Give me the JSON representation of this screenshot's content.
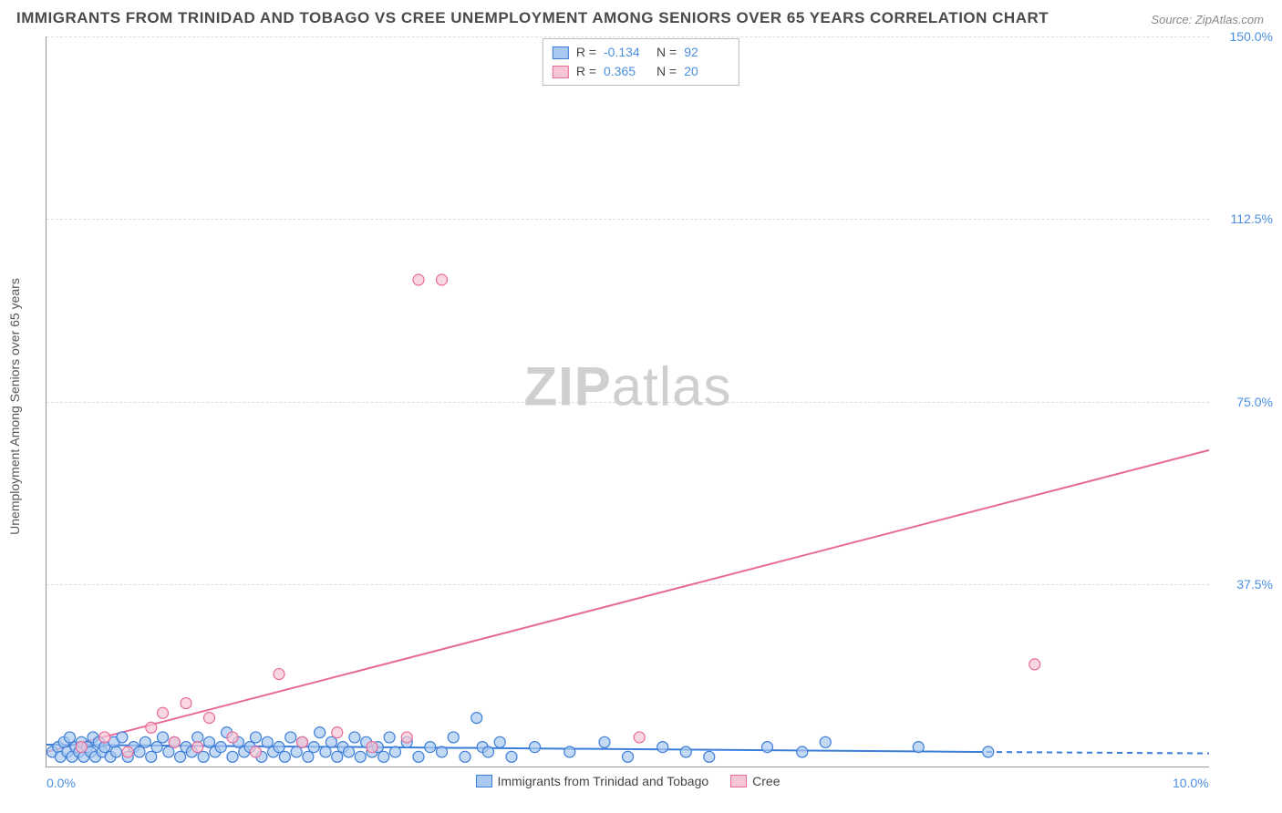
{
  "title": "IMMIGRANTS FROM TRINIDAD AND TOBAGO VS CREE UNEMPLOYMENT AMONG SENIORS OVER 65 YEARS CORRELATION CHART",
  "source_label": "Source:",
  "source_value": "ZipAtlas.com",
  "ylabel": "Unemployment Among Seniors over 65 years",
  "watermark_bold": "ZIP",
  "watermark_light": "atlas",
  "colors": {
    "series_blue_fill": "#a9c9f0",
    "series_blue_stroke": "#3b7dd8",
    "series_pink_fill": "#f7c6d4",
    "series_pink_stroke": "#e86a9a",
    "axis_text": "#4a8fe0",
    "grid": "#dddddd",
    "axis_line": "#999999",
    "text": "#4a4a4a",
    "bg": "#ffffff"
  },
  "chart": {
    "type": "scatter",
    "xlim": [
      0,
      10
    ],
    "ylim": [
      0,
      150
    ],
    "xticks": [
      {
        "value": 0.0,
        "label": "0.0%"
      },
      {
        "value": 10.0,
        "label": "10.0%"
      }
    ],
    "yticks": [
      {
        "value": 37.5,
        "label": "37.5%"
      },
      {
        "value": 75.0,
        "label": "75.0%"
      },
      {
        "value": 112.5,
        "label": "112.5%"
      },
      {
        "value": 150.0,
        "label": "150.0%"
      }
    ],
    "marker_radius": 6,
    "marker_opacity": 0.7,
    "marker_stroke_width": 1.2,
    "trend_line_width": 2
  },
  "legend_top": [
    {
      "swatch_fill": "#a9c9f0",
      "swatch_stroke": "#3b7dd8",
      "r_label": "R =",
      "r_value": "-0.134",
      "n_label": "N =",
      "n_value": "92"
    },
    {
      "swatch_fill": "#f7c6d4",
      "swatch_stroke": "#e86a9a",
      "r_label": "R =",
      "r_value": "0.365",
      "n_label": "N =",
      "n_value": "20"
    }
  ],
  "legend_bottom": [
    {
      "swatch_fill": "#a9c9f0",
      "swatch_stroke": "#3b7dd8",
      "label": "Immigrants from Trinidad and Tobago"
    },
    {
      "swatch_fill": "#f7c6d4",
      "swatch_stroke": "#e86a9a",
      "label": "Cree"
    }
  ],
  "series": {
    "blue": {
      "trend": {
        "x1": 0,
        "y1": 4.5,
        "x2": 8.0,
        "y2": 3.0,
        "dash_after_x": 8.0,
        "dash_to_x": 10.0,
        "dash_to_y": 2.7
      },
      "points": [
        [
          0.05,
          3
        ],
        [
          0.1,
          4
        ],
        [
          0.12,
          2
        ],
        [
          0.15,
          5
        ],
        [
          0.18,
          3
        ],
        [
          0.2,
          6
        ],
        [
          0.22,
          2
        ],
        [
          0.25,
          4
        ],
        [
          0.28,
          3
        ],
        [
          0.3,
          5
        ],
        [
          0.32,
          2
        ],
        [
          0.35,
          4
        ],
        [
          0.38,
          3
        ],
        [
          0.4,
          6
        ],
        [
          0.42,
          2
        ],
        [
          0.45,
          5
        ],
        [
          0.48,
          3
        ],
        [
          0.5,
          4
        ],
        [
          0.55,
          2
        ],
        [
          0.58,
          5
        ],
        [
          0.6,
          3
        ],
        [
          0.65,
          6
        ],
        [
          0.7,
          2
        ],
        [
          0.75,
          4
        ],
        [
          0.8,
          3
        ],
        [
          0.85,
          5
        ],
        [
          0.9,
          2
        ],
        [
          0.95,
          4
        ],
        [
          1.0,
          6
        ],
        [
          1.05,
          3
        ],
        [
          1.1,
          5
        ],
        [
          1.15,
          2
        ],
        [
          1.2,
          4
        ],
        [
          1.25,
          3
        ],
        [
          1.3,
          6
        ],
        [
          1.35,
          2
        ],
        [
          1.4,
          5
        ],
        [
          1.45,
          3
        ],
        [
          1.5,
          4
        ],
        [
          1.55,
          7
        ],
        [
          1.6,
          2
        ],
        [
          1.65,
          5
        ],
        [
          1.7,
          3
        ],
        [
          1.75,
          4
        ],
        [
          1.8,
          6
        ],
        [
          1.85,
          2
        ],
        [
          1.9,
          5
        ],
        [
          1.95,
          3
        ],
        [
          2.0,
          4
        ],
        [
          2.05,
          2
        ],
        [
          2.1,
          6
        ],
        [
          2.15,
          3
        ],
        [
          2.2,
          5
        ],
        [
          2.25,
          2
        ],
        [
          2.3,
          4
        ],
        [
          2.35,
          7
        ],
        [
          2.4,
          3
        ],
        [
          2.45,
          5
        ],
        [
          2.5,
          2
        ],
        [
          2.55,
          4
        ],
        [
          2.6,
          3
        ],
        [
          2.65,
          6
        ],
        [
          2.7,
          2
        ],
        [
          2.75,
          5
        ],
        [
          2.8,
          3
        ],
        [
          2.85,
          4
        ],
        [
          2.9,
          2
        ],
        [
          2.95,
          6
        ],
        [
          3.0,
          3
        ],
        [
          3.1,
          5
        ],
        [
          3.2,
          2
        ],
        [
          3.3,
          4
        ],
        [
          3.4,
          3
        ],
        [
          3.5,
          6
        ],
        [
          3.6,
          2
        ],
        [
          3.7,
          10
        ],
        [
          3.75,
          4
        ],
        [
          3.8,
          3
        ],
        [
          3.9,
          5
        ],
        [
          4.0,
          2
        ],
        [
          4.2,
          4
        ],
        [
          4.5,
          3
        ],
        [
          4.8,
          5
        ],
        [
          5.0,
          2
        ],
        [
          5.3,
          4
        ],
        [
          5.5,
          3
        ],
        [
          5.7,
          2
        ],
        [
          6.2,
          4
        ],
        [
          6.5,
          3
        ],
        [
          6.7,
          5
        ],
        [
          7.5,
          4
        ],
        [
          8.1,
          3
        ]
      ]
    },
    "pink": {
      "trend": {
        "x1": 0,
        "y1": 3,
        "x2": 10.0,
        "y2": 65
      },
      "points": [
        [
          0.3,
          4
        ],
        [
          0.5,
          6
        ],
        [
          0.7,
          3
        ],
        [
          0.9,
          8
        ],
        [
          1.0,
          11
        ],
        [
          1.1,
          5
        ],
        [
          1.2,
          13
        ],
        [
          1.3,
          4
        ],
        [
          1.4,
          10
        ],
        [
          1.6,
          6
        ],
        [
          1.8,
          3
        ],
        [
          2.0,
          19
        ],
        [
          2.2,
          5
        ],
        [
          2.5,
          7
        ],
        [
          2.8,
          4
        ],
        [
          3.1,
          6
        ],
        [
          3.2,
          100
        ],
        [
          3.4,
          100
        ],
        [
          5.1,
          6
        ],
        [
          8.5,
          21
        ]
      ]
    }
  }
}
